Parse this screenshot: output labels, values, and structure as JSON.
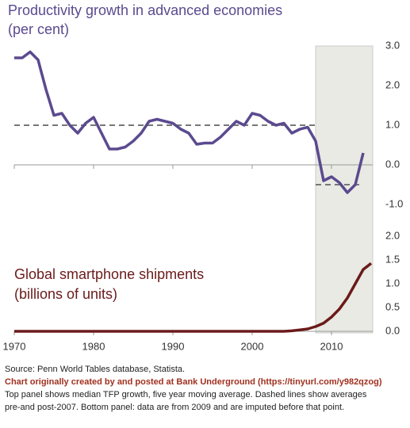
{
  "chart_data": [
    {
      "type": "line",
      "title": "Productivity growth in advanced economies",
      "subtitle": "(per cent)",
      "x": [
        1970,
        1971,
        1972,
        1973,
        1974,
        1975,
        1976,
        1977,
        1978,
        1979,
        1980,
        1981,
        1982,
        1983,
        1984,
        1985,
        1986,
        1987,
        1988,
        1989,
        1990,
        1991,
        1992,
        1993,
        1994,
        1995,
        1996,
        1997,
        1998,
        1999,
        2000,
        2001,
        2002,
        2003,
        2004,
        2005,
        2006,
        2007,
        2008,
        2009,
        2010,
        2011,
        2012,
        2013,
        2014
      ],
      "series": [
        {
          "color": "#5b4a8f",
          "values": [
            2.7,
            2.7,
            2.85,
            2.65,
            1.9,
            1.25,
            1.3,
            1.0,
            0.8,
            1.05,
            1.2,
            0.8,
            0.4,
            0.4,
            0.45,
            0.6,
            0.8,
            1.1,
            1.15,
            1.1,
            1.05,
            0.9,
            0.8,
            0.52,
            0.55,
            0.55,
            0.7,
            0.9,
            1.1,
            1.0,
            1.3,
            1.25,
            1.1,
            1.0,
            1.05,
            0.8,
            0.9,
            0.95,
            0.6,
            -0.4,
            -0.3,
            -0.45,
            -0.7,
            -0.5,
            0.3
          ]
        }
      ],
      "reference_lines": [
        {
          "value": 1.0,
          "x": [
            1970,
            2008
          ]
        },
        {
          "value": -0.5,
          "x": [
            2008,
            2014
          ]
        }
      ],
      "shaded_x": [
        2008,
        2015.2
      ],
      "xlim": [
        1970,
        2015.2
      ],
      "ylim": [
        -1,
        3
      ],
      "yticks": [
        {
          "value": 3,
          "label": "3.0"
        },
        {
          "value": 2,
          "label": "2.0"
        },
        {
          "value": 1,
          "label": "1.0"
        },
        {
          "value": 0,
          "label": "0.0"
        },
        {
          "value": -1,
          "label": "-1.0"
        }
      ]
    },
    {
      "type": "line",
      "title": "Global smartphone shipments",
      "subtitle": "(billions of units)",
      "x": [
        1970,
        2000,
        2004,
        2005,
        2006,
        2007,
        2008,
        2009,
        2010,
        2011,
        2012,
        2013,
        2014,
        2015
      ],
      "series": [
        {
          "color": "#6b1a1a",
          "values": [
            0,
            0,
            0,
            0.01,
            0.03,
            0.05,
            0.1,
            0.17,
            0.3,
            0.47,
            0.7,
            1.0,
            1.3,
            1.43
          ]
        }
      ],
      "xlim": [
        1970,
        2015.2
      ],
      "ylim": [
        0,
        2
      ],
      "yticks": [
        {
          "value": 2,
          "label": "2.0"
        },
        1.5,
        {
          "value": 1,
          "label": "1.0"
        },
        0.5,
        {
          "value": 0,
          "label": "0.0"
        }
      ],
      "xticks": [
        1970,
        1980,
        1990,
        2000,
        2010
      ]
    }
  ],
  "notes": {
    "source": "Source:  Penn World Tables database, Statista.",
    "credit": "Chart originally created by and posted at Bank Underground (https://tinyurl.com/y982qzog)",
    "line1": "Top panel shows median TFP growth, five year moving average.  Dashed lines show averages",
    "line2": "pre-and post-2007.  Bottom panel:  data are from 2009 and are imputed before that point."
  }
}
